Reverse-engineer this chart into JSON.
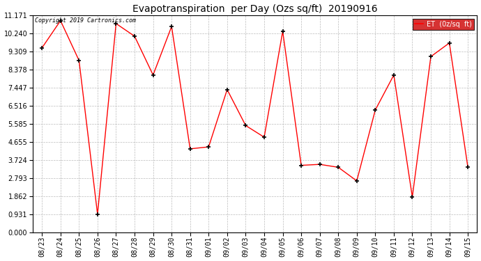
{
  "title": "Evapotranspiration  per Day (Ozs sq/ft)  20190916",
  "dates": [
    "08/23",
    "08/24",
    "08/25",
    "08/26",
    "08/27",
    "08/28",
    "08/29",
    "08/30",
    "08/31",
    "09/01",
    "09/02",
    "09/03",
    "09/04",
    "09/05",
    "09/06",
    "09/07",
    "09/08",
    "09/09",
    "09/10",
    "09/11",
    "09/12",
    "09/13",
    "09/14",
    "09/15"
  ],
  "values": [
    9.5,
    10.9,
    8.85,
    0.93,
    10.75,
    10.1,
    8.1,
    10.6,
    4.3,
    4.4,
    7.35,
    5.5,
    4.9,
    10.35,
    3.45,
    3.5,
    3.35,
    2.65,
    6.3,
    8.1,
    1.82,
    9.05,
    9.75,
    3.35
  ],
  "line_color": "#ff0000",
  "marker": "+",
  "marker_color": "#000000",
  "marker_size": 5,
  "marker_edge_width": 1.2,
  "legend_bg": "#cc0000",
  "legend_text_color": "#ffffff",
  "yticks": [
    0.0,
    0.931,
    1.862,
    2.793,
    3.724,
    4.655,
    5.585,
    6.516,
    7.447,
    8.378,
    9.309,
    10.24,
    11.171
  ],
  "ymin": 0.0,
  "ymax": 11.171,
  "copyright_text": "Copyright 2019 Cartronics.com",
  "bg_color": "#ffffff",
  "grid_color": "#bbbbbb",
  "title_fontsize": 10,
  "tick_fontsize": 7,
  "ytick_fontsize": 7
}
